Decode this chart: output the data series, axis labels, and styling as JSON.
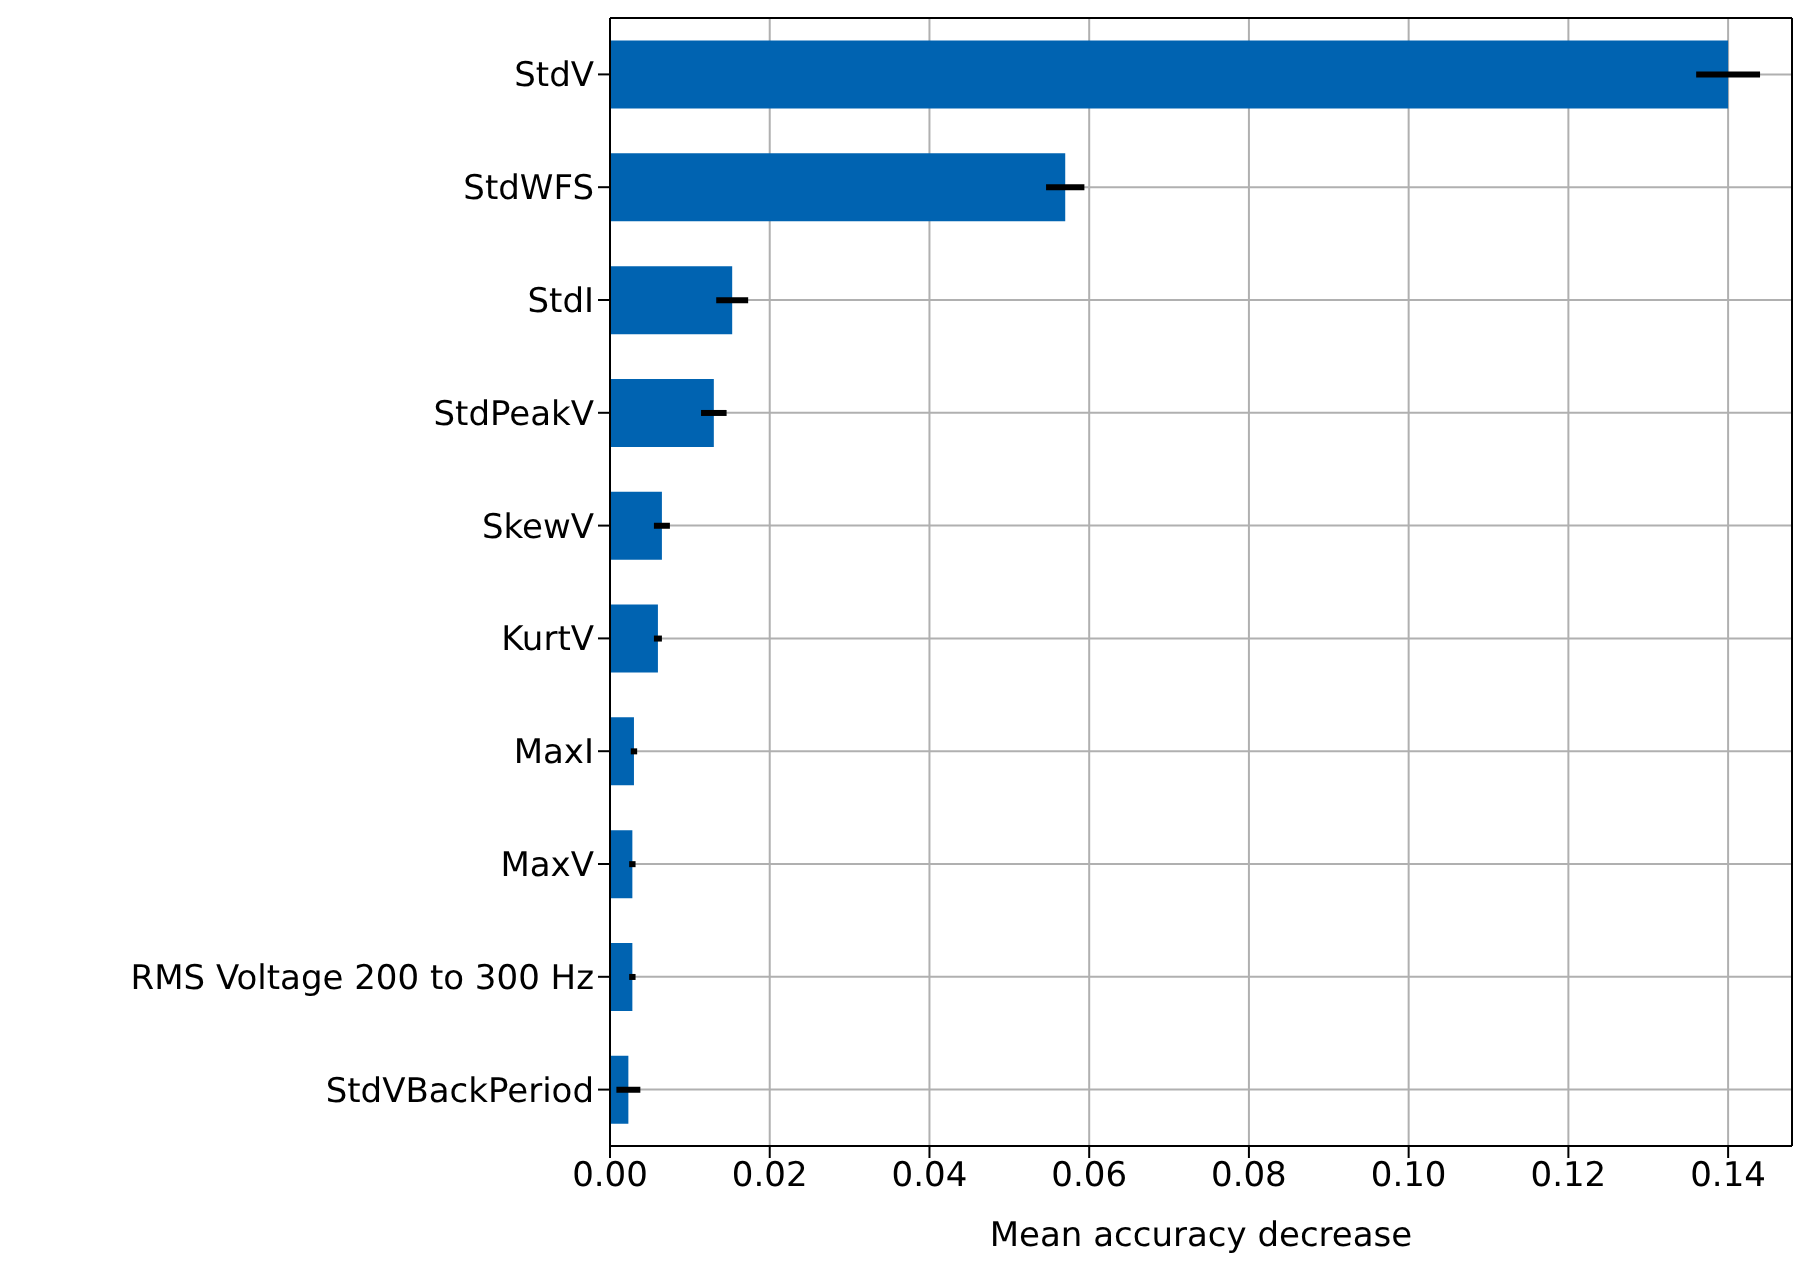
{
  "chart_data": {
    "type": "bar",
    "orientation": "horizontal",
    "xlabel": "Mean accuracy decrease",
    "categories": [
      "StdV",
      "StdWFS",
      "StdI",
      "StdPeakV",
      "SkewV",
      "KurtV",
      "MaxI",
      "MaxV",
      "RMS Voltage 200 to 300 Hz",
      "StdVBackPeriod"
    ],
    "values": [
      0.14,
      0.057,
      0.0153,
      0.013,
      0.0065,
      0.006,
      0.003,
      0.0028,
      0.0028,
      0.0023
    ],
    "errors": [
      0.004,
      0.0024,
      0.002,
      0.0016,
      0.001,
      0.0005,
      0.0004,
      0.0004,
      0.0004,
      0.0015
    ],
    "color": "#0063b1",
    "xlim": [
      0,
      0.148
    ],
    "xticks": [
      {
        "value": 0,
        "label": "0.00"
      },
      {
        "value": 0.02,
        "label": "0.02"
      },
      {
        "value": 0.04,
        "label": "0.04"
      },
      {
        "value": 0.06,
        "label": "0.06"
      },
      {
        "value": 0.08,
        "label": "0.08"
      },
      {
        "value": 0.1,
        "label": "0.10"
      },
      {
        "value": 0.12,
        "label": "0.12"
      },
      {
        "value": 0.14,
        "label": "0.14"
      }
    ],
    "grid": true
  }
}
